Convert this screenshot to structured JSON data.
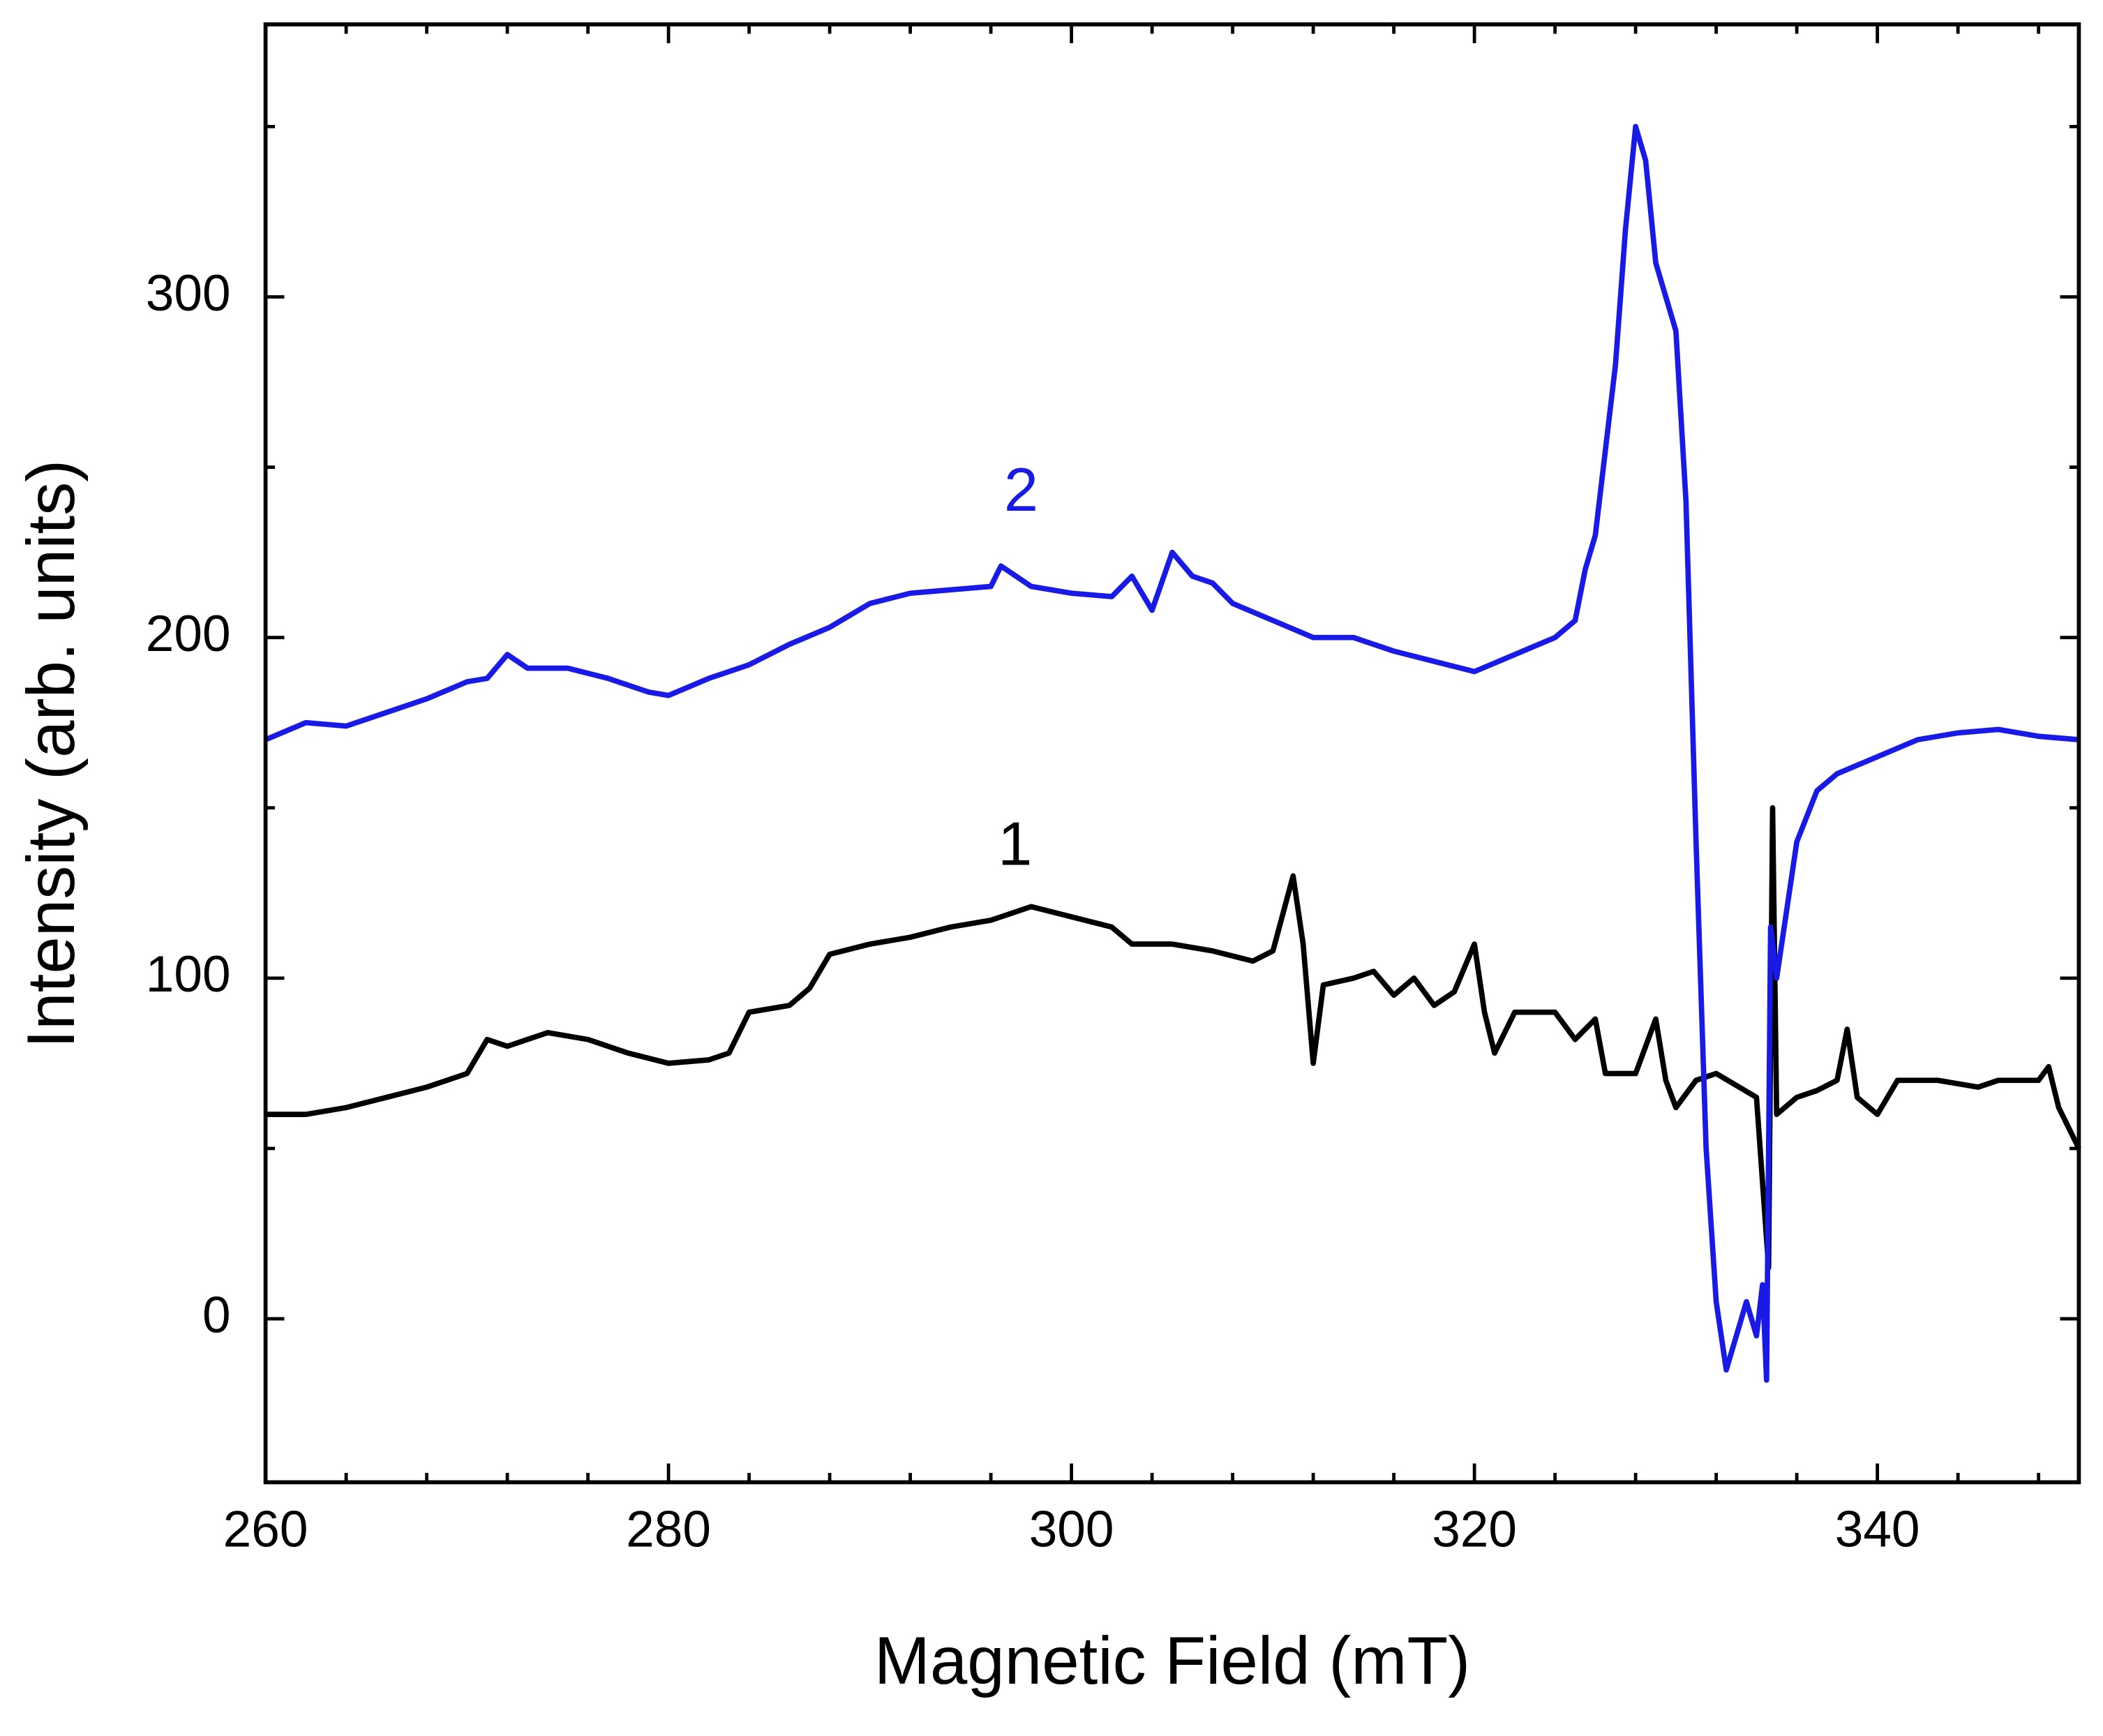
{
  "chart_data": {
    "type": "line",
    "x_label": "Magnetic Field (mT)",
    "y_label": "Intensity (arb. units)",
    "xlim": [
      260,
      350
    ],
    "ylim": [
      -48,
      380
    ],
    "xticks": [
      260,
      280,
      300,
      320,
      340
    ],
    "yticks": [
      0,
      100,
      200,
      300
    ],
    "xticks_minor": [
      264,
      268,
      272,
      276,
      284,
      288,
      292,
      296,
      304,
      308,
      312,
      316,
      324,
      328,
      332,
      336,
      344,
      348
    ],
    "yticks_minor": [
      50,
      150,
      250,
      350
    ],
    "annotations": [
      {
        "text": "1",
        "x": 297.2,
        "y": 138,
        "color": "#000000"
      },
      {
        "text": "2",
        "x": 297.5,
        "y": 242,
        "color": "#1a1ae6"
      }
    ],
    "series": [
      {
        "name": "1",
        "color": "#000000",
        "x": [
          260,
          262,
          264,
          266,
          268,
          270,
          271,
          272,
          274,
          276,
          278,
          280,
          282,
          283,
          284,
          286,
          287,
          288,
          290,
          292,
          294,
          296,
          298,
          300,
          302,
          303,
          305,
          307,
          309,
          310,
          311,
          311.5,
          312,
          312.5,
          314,
          315,
          316,
          317,
          318,
          319,
          320,
          320.5,
          321,
          322,
          324,
          325,
          326,
          326.5,
          328,
          329,
          329.5,
          330,
          331,
          332,
          334,
          334.6,
          334.8,
          335,
          336,
          337,
          338,
          338.5,
          339,
          340,
          341,
          343,
          345,
          346,
          348,
          348.5,
          349,
          350
        ],
        "values": [
          60,
          60,
          62,
          65,
          68,
          72,
          82,
          80,
          84,
          82,
          78,
          75,
          76,
          78,
          90,
          92,
          97,
          107,
          110,
          112,
          115,
          117,
          121,
          118,
          115,
          110,
          110,
          108,
          105,
          108,
          130,
          110,
          75,
          98,
          100,
          102,
          95,
          100,
          92,
          96,
          110,
          90,
          78,
          90,
          90,
          82,
          88,
          72,
          72,
          88,
          70,
          62,
          70,
          72,
          65,
          15,
          150,
          60,
          65,
          67,
          70,
          85,
          65,
          60,
          70,
          70,
          68,
          70,
          70,
          74,
          62,
          50
        ]
      },
      {
        "name": "2",
        "color": "#1a1ae6",
        "x": [
          260,
          262,
          264,
          266,
          268,
          270,
          271,
          272,
          273,
          275,
          277,
          279,
          280,
          282,
          284,
          286,
          288,
          290,
          292,
          294,
          296,
          296.5,
          298,
          300,
          302,
          303,
          304,
          305,
          306,
          307,
          308,
          310,
          312,
          314,
          316,
          318,
          320,
          322,
          324,
          325,
          325.5,
          326,
          327,
          327.5,
          328,
          328.5,
          329,
          329.5,
          330,
          330.5,
          331,
          331.5,
          332,
          332.5,
          333,
          333.5,
          334,
          334.3,
          334.5,
          334.7,
          335,
          335.5,
          336,
          337,
          338,
          340,
          342,
          344,
          346,
          348,
          350
        ],
        "values": [
          170,
          175,
          174,
          178,
          182,
          187,
          188,
          195,
          191,
          191,
          188,
          184,
          183,
          188,
          192,
          198,
          203,
          210,
          213,
          214,
          215,
          221,
          215,
          213,
          212,
          218,
          208,
          225,
          218,
          216,
          210,
          205,
          200,
          200,
          196,
          193,
          190,
          195,
          200,
          205,
          220,
          230,
          280,
          320,
          350,
          340,
          310,
          300,
          290,
          240,
          140,
          50,
          5,
          -15,
          -5,
          5,
          -5,
          10,
          -18,
          115,
          100,
          120,
          140,
          155,
          160,
          165,
          170,
          172,
          173,
          171,
          170
        ]
      }
    ]
  }
}
